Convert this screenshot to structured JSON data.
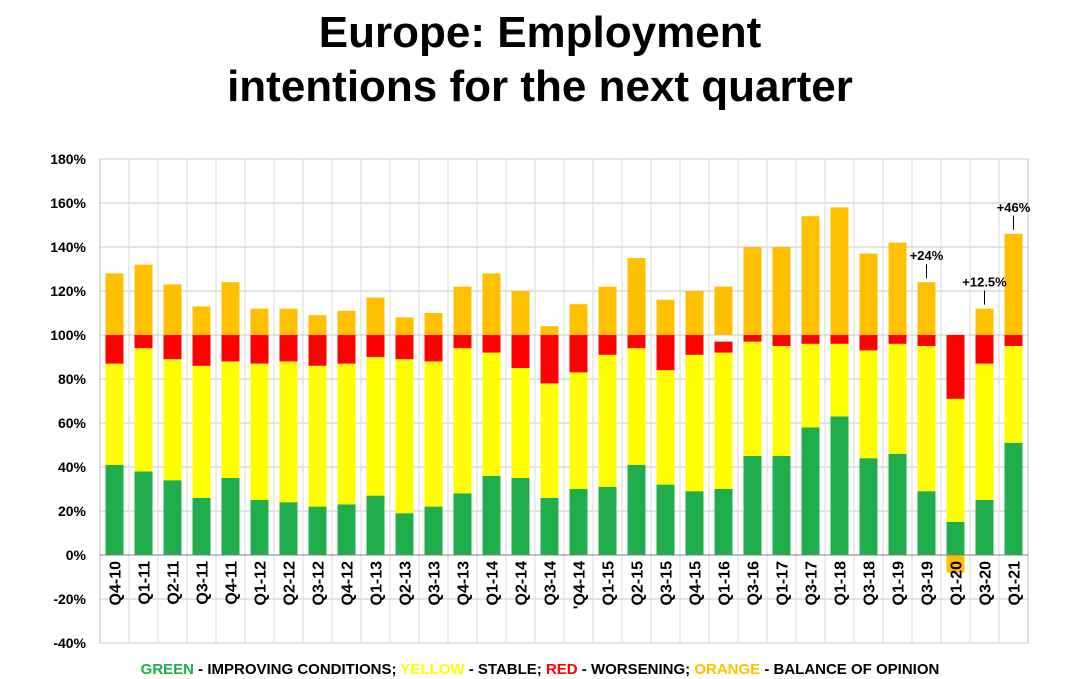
{
  "title": {
    "line1": "Europe: Employment",
    "line2": "intentions for the next quarter"
  },
  "legend": {
    "green_word": "GREEN",
    "green_desc": " - IMPROVING CONDITIONS; ",
    "yellow_word": "YELLOW",
    "yellow_desc": " - STABLE; ",
    "red_word": "RED",
    "red_desc": " - WORSENING; ",
    "orange_word": "ORANGE",
    "orange_desc": " - BALANCE OF OPINION"
  },
  "colors": {
    "green": "#1fae4b",
    "yellow": "#ffff00",
    "red": "#ff0000",
    "orange": "#ffc000",
    "legend_text": "#000000"
  },
  "chart_data": {
    "type": "bar",
    "stacked": true,
    "ylim": [
      -40,
      180
    ],
    "yticks": [
      -40,
      -20,
      0,
      20,
      40,
      60,
      80,
      100,
      120,
      140,
      160,
      180
    ],
    "ytick_labels": [
      "-40%",
      "-20%",
      "0%",
      "20%",
      "40%",
      "60%",
      "80%",
      "100%",
      "120%",
      "140%",
      "160%",
      "180%"
    ],
    "grid": true,
    "legend_position": "bottom",
    "categories": [
      "Q4-10",
      "Q1-11",
      "Q2-11",
      "Q3-11",
      "Q4-11",
      "Q1-12",
      "Q2-12",
      "Q3-12",
      "Q4-12",
      "Q1-13",
      "Q2-13",
      "Q3-13",
      "Q4-13",
      "Q1-14",
      "Q2-14",
      "Q3-14",
      "'Q4-14",
      "Q1-15",
      "Q2-15",
      "Q3-15",
      "Q4-15",
      "Q1-16",
      "Q3-16",
      "Q1-17",
      "Q3-17",
      "Q1-18",
      "Q3-18",
      "Q1-19",
      "Q3-19",
      "Q1-20",
      "Q3-20",
      "Q1-21"
    ],
    "series": [
      {
        "name": "GREEN",
        "values": [
          41,
          38,
          34,
          26,
          35,
          25,
          24,
          22,
          23,
          27,
          19,
          22,
          28,
          36,
          35,
          26,
          30,
          31,
          41,
          32,
          29,
          30,
          45,
          45,
          58,
          63,
          44,
          46,
          29,
          15,
          25,
          51
        ]
      },
      {
        "name": "YELLOW",
        "values": [
          46,
          56,
          55,
          60,
          53,
          62,
          64,
          64,
          64,
          63,
          70,
          66,
          66,
          56,
          50,
          52,
          53,
          60,
          53,
          52,
          62,
          62,
          52,
          50,
          38,
          33,
          49,
          50,
          66,
          56,
          62,
          44
        ]
      },
      {
        "name": "RED",
        "values": [
          13,
          6,
          11,
          14,
          12,
          13,
          12,
          14,
          13,
          10,
          11,
          12,
          6,
          8,
          15,
          22,
          17,
          9,
          6,
          16,
          9,
          5,
          6,
          5,
          4,
          4,
          7,
          4,
          5,
          29,
          13,
          5
        ]
      },
      {
        "name": "ORANGE",
        "values": [
          28,
          32,
          23,
          13,
          24,
          12,
          12,
          9,
          11,
          17,
          8,
          10,
          22,
          28,
          20,
          4,
          14,
          22,
          35,
          16,
          20,
          22,
          40,
          40,
          54,
          58,
          37,
          42,
          24,
          -8,
          12,
          46
        ]
      }
    ],
    "annotations": [
      {
        "category": "Q3-19",
        "text": "+24%"
      },
      {
        "category": "Q3-20",
        "text": "+12.5%"
      },
      {
        "category": "Q1-21",
        "text": "+46%"
      }
    ]
  }
}
